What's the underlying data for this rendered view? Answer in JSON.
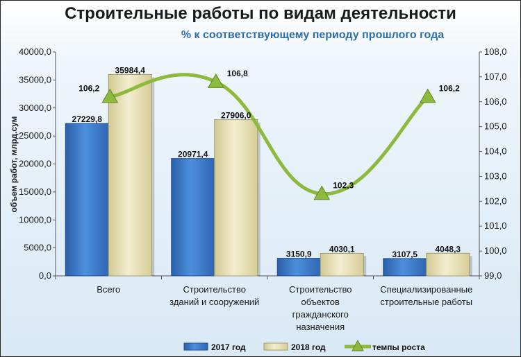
{
  "chart_data": {
    "type": "bar",
    "title": "Строительные работы по видам деятельности",
    "subtitle": "% к соответствующему периоду прошлого года",
    "ylabel": "объем работ, млрд.сум",
    "categories": [
      [
        "Всего"
      ],
      [
        "Строительство",
        "зданий и сооружений"
      ],
      [
        "Строительство",
        "объектов",
        "гражданского",
        "назначения"
      ],
      [
        "Специализированные",
        "строительные работы"
      ]
    ],
    "series": [
      {
        "name": "2017 год",
        "kind": "bar",
        "color": "#3a78c9",
        "values": [
          27229.8,
          20971.4,
          3150.9,
          3107.5
        ],
        "labels": [
          "27229,8",
          "20971,4",
          "3150,9",
          "3107,5"
        ]
      },
      {
        "name": "2018 год",
        "kind": "bar",
        "color": "#e6dfb4",
        "values": [
          35984.4,
          27906.0,
          4030.1,
          4048.3
        ],
        "labels": [
          "35984,4",
          "27906,0",
          "4030,1",
          "4048,3"
        ]
      },
      {
        "name": "темпы роста",
        "kind": "line",
        "axis": "right",
        "color": "#8dba3c",
        "values": [
          106.2,
          106.8,
          102.3,
          106.2
        ],
        "labels": [
          "106,2",
          "106,8",
          "102,3",
          "106,2"
        ]
      }
    ],
    "ylim": [
      0,
      40000
    ],
    "y_ticks": [
      "0,0",
      "5000,0",
      "10000,0",
      "15000,0",
      "20000,0",
      "25000,0",
      "30000,0",
      "35000,0",
      "40000,0"
    ],
    "y2lim": [
      99.0,
      108.0
    ],
    "y2_ticks": [
      "99,0",
      "100,0",
      "101,0",
      "102,0",
      "103,0",
      "104,0",
      "105,0",
      "106,0",
      "107,0",
      "108,0"
    ],
    "grid": false,
    "legend": "bottom"
  }
}
